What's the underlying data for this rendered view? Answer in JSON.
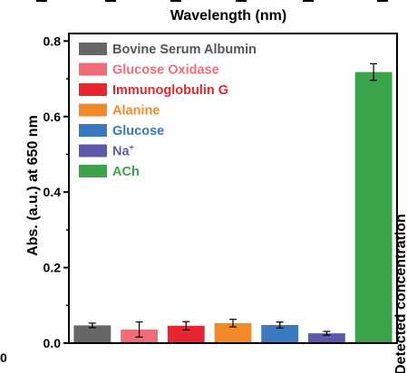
{
  "chart_data": {
    "type": "bar",
    "xlabel": "",
    "ylabel": "Abs. (a.u.) at 650 nm",
    "top_axis_label": "Wavelength (nm)",
    "right_axis_label": "Detected concentration",
    "ylim": [
      0,
      0.82
    ],
    "yticks": [
      0.0,
      0.2,
      0.4,
      0.6,
      0.8
    ],
    "ytick_labels": [
      "0.0",
      "0.2",
      "0.4",
      "0.6",
      "0.8"
    ],
    "left_edge_fragment": "0",
    "grid": false,
    "legend_position": "top-left",
    "categories": [
      "Bovine Serum Albumin",
      "Glucose Oxidase",
      "Immunoglobulin G",
      "Alanine",
      "Glucose",
      "Na+",
      "ACh"
    ],
    "series": [
      {
        "values": [
          0.047,
          0.036,
          0.046,
          0.053,
          0.048,
          0.026,
          0.718
        ],
        "errors": [
          0.006,
          0.02,
          0.011,
          0.01,
          0.008,
          0.005,
          0.022
        ],
        "colors": [
          "#666666",
          "#f06d78",
          "#e8262f",
          "#f28a2a",
          "#3a78bf",
          "#5d5aa8",
          "#3ba349"
        ]
      }
    ],
    "legend": [
      {
        "label": "Bovine Serum Albumin",
        "color": "#666666",
        "text_color": "#555555"
      },
      {
        "label": "Glucose Oxidase",
        "color": "#f06d78",
        "text_color": "#f06d78"
      },
      {
        "label": "Immunoglobulin G",
        "color": "#e8262f",
        "text_color": "#e8262f"
      },
      {
        "label": "Alanine",
        "color": "#f28a2a",
        "text_color": "#f28a2a"
      },
      {
        "label": "Glucose",
        "color": "#3a78bf",
        "text_color": "#3a78bf"
      },
      {
        "label": "Na",
        "superscript": "+",
        "color": "#5d5aa8",
        "text_color": "#5d5aa8"
      },
      {
        "label": "ACh",
        "color": "#3ba349",
        "text_color": "#3ba349"
      }
    ]
  }
}
